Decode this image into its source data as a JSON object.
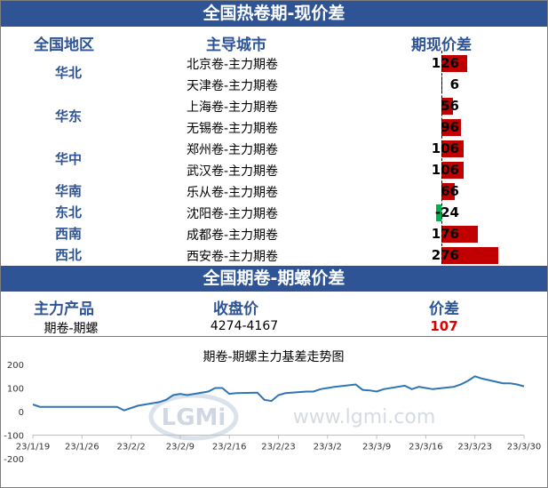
{
  "section1": {
    "title": "全国热卷期-现价差",
    "col_region": "全国地区",
    "col_city": "主导城市",
    "col_spread": "期现价差"
  },
  "regions": [
    "华北",
    "华东",
    "华中",
    "华南",
    "东北",
    "西南",
    "西北"
  ],
  "rows": [
    {
      "city": "北京卷-主力期卷",
      "value": "126"
    },
    {
      "city": "天津卷-主力期卷",
      "value": "6"
    },
    {
      "city": "上海卷-主力期卷",
      "value": "56"
    },
    {
      "city": "无锡卷-主力期卷",
      "value": "96"
    },
    {
      "city": "郑州卷-主力期卷",
      "value": "106"
    },
    {
      "city": "武汉卷-主力期卷",
      "value": "106"
    },
    {
      "city": "乐从卷-主力期卷",
      "value": "66"
    },
    {
      "city": "沈阳卷-主力期卷",
      "value": "-24"
    },
    {
      "city": "成都卷-主力期卷",
      "value": "176"
    },
    {
      "city": "西安卷-主力期卷",
      "value": "276"
    }
  ],
  "colors": {
    "positive": "#c00000",
    "negative": "#00b050",
    "header": "#2f5496",
    "line": "#2e75b6",
    "spread": "#e00000"
  },
  "section2": {
    "title": "全国期卷-期螺价差",
    "col_product": "主力产品",
    "col_close": "收盘价",
    "col_spread": "价差",
    "product": "期卷-期螺",
    "close": "4274-4167",
    "spread": "107"
  },
  "watermark": {
    "logo": "LGMi",
    "url": "www.lgmi.com"
  },
  "chart_data": {
    "type": "line",
    "title": "期卷-期螺主力基差走势图",
    "xlabel": "",
    "ylabel": "",
    "ylim": [
      -200,
      200
    ],
    "yticks": [
      200,
      100,
      0,
      -100,
      -200
    ],
    "xticks": [
      "23/1/19",
      "23/1/26",
      "23/2/2",
      "23/2/9",
      "23/2/16",
      "23/2/23",
      "23/3/2",
      "23/3/9",
      "23/3/16",
      "23/3/23",
      "23/3/30"
    ],
    "grid": false,
    "series": [
      {
        "values": [
          [
            "23/1/19",
            30
          ],
          [
            "23/1/20",
            20
          ],
          [
            "23/1/27",
            20
          ],
          [
            "23/1/30",
            20
          ],
          [
            "23/1/31",
            20
          ],
          [
            "23/2/1",
            5
          ],
          [
            "23/2/2",
            15
          ],
          [
            "23/2/3",
            25
          ],
          [
            "23/2/6",
            40
          ],
          [
            "23/2/7",
            50
          ],
          [
            "23/2/8",
            70
          ],
          [
            "23/2/9",
            75
          ],
          [
            "23/2/10",
            70
          ],
          [
            "23/2/13",
            85
          ],
          [
            "23/2/14",
            100
          ],
          [
            "23/2/15",
            100
          ],
          [
            "23/2/16",
            75
          ],
          [
            "23/2/17",
            78
          ],
          [
            "23/2/20",
            80
          ],
          [
            "23/2/21",
            50
          ],
          [
            "23/2/22",
            45
          ],
          [
            "23/2/23",
            70
          ],
          [
            "23/2/24",
            78
          ],
          [
            "23/2/27",
            85
          ],
          [
            "23/2/28",
            85
          ],
          [
            "23/3/1",
            95
          ],
          [
            "23/3/2",
            100
          ],
          [
            "23/3/3",
            105
          ],
          [
            "23/3/6",
            115
          ],
          [
            "23/3/7",
            92
          ],
          [
            "23/3/8",
            90
          ],
          [
            "23/3/9",
            85
          ],
          [
            "23/3/10",
            95
          ],
          [
            "23/3/13",
            110
          ],
          [
            "23/3/14",
            95
          ],
          [
            "23/3/15",
            105
          ],
          [
            "23/3/16",
            100
          ],
          [
            "23/3/17",
            95
          ],
          [
            "23/3/20",
            105
          ],
          [
            "23/3/21",
            115
          ],
          [
            "23/3/22",
            130
          ],
          [
            "23/3/23",
            150
          ],
          [
            "23/3/24",
            140
          ],
          [
            "23/3/27",
            120
          ],
          [
            "23/3/28",
            120
          ],
          [
            "23/3/29",
            115
          ],
          [
            "23/3/30",
            107
          ]
        ]
      }
    ]
  }
}
